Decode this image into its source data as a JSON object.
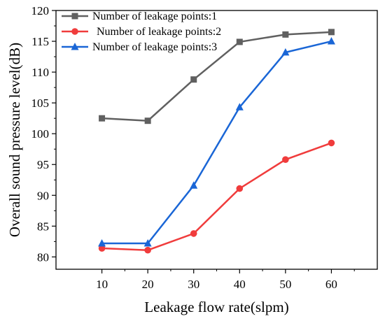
{
  "chart_data": {
    "type": "line",
    "xlabel": "Leakage flow rate(slpm)",
    "ylabel": "Overall sound pressure level(dB)",
    "x": [
      10,
      20,
      30,
      40,
      50,
      60
    ],
    "xlim": [
      0,
      70
    ],
    "ylim": [
      78,
      120
    ],
    "xticks": [
      10,
      20,
      30,
      40,
      50,
      60
    ],
    "yticks": [
      80,
      85,
      90,
      95,
      100,
      105,
      110,
      115,
      120
    ],
    "grid": false,
    "legend_position": "top-left",
    "series": [
      {
        "name": "Number of leakage points:1",
        "color": "#606060",
        "marker": "square",
        "values": [
          102.5,
          102.1,
          108.8,
          114.9,
          116.1,
          116.5
        ]
      },
      {
        "name": "Number of leakage points:2",
        "color": "#f03c3c",
        "marker": "circle",
        "values": [
          81.4,
          81.1,
          83.8,
          91.1,
          95.8,
          98.5
        ]
      },
      {
        "name": "Number of leakage points:3",
        "color": "#1a66d6",
        "marker": "triangle",
        "values": [
          82.2,
          82.2,
          91.6,
          104.3,
          113.2,
          115.0
        ]
      }
    ]
  }
}
